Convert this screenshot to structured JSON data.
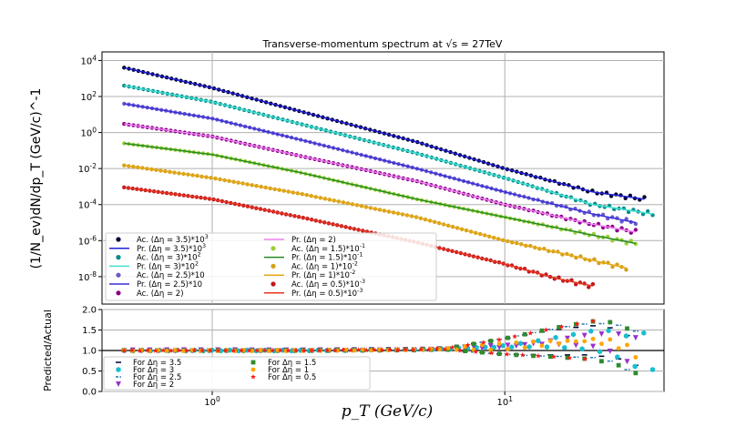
{
  "chart_data": [
    {
      "type": "scatter",
      "title": "Transverse-momentum spectrum at √s = 27TeV",
      "xlabel": "p_T (GeV/c)",
      "ylabel": "(1/N_ev)dN/dp_T (GeV/c)^-1",
      "xscale": "log",
      "yscale": "log",
      "xlim": [
        0.42,
        35
      ],
      "ylim": [
        3e-10,
        30000.0
      ],
      "grid": true,
      "legend_position": "lower-left",
      "y_tick_labels": [
        "10^4",
        "10^2",
        "10^0",
        "10^-2",
        "10^-4",
        "10^-6",
        "10^-8"
      ],
      "series": [
        {
          "name": "Ac. (Δη = 3.5)*10^3",
          "kind": "points",
          "color": "#000033",
          "x": [
            0.5,
            1,
            2,
            5,
            10,
            20,
            30
          ],
          "y": [
            4000,
            300,
            15,
            0.3,
            0.01,
            0.0005,
            0.0002
          ]
        },
        {
          "name": "Pr. (Δη = 3.5)*10^3",
          "kind": "line",
          "color": "#1f1fd6",
          "x": [
            0.5,
            1,
            2,
            5,
            10,
            20,
            30
          ],
          "y": [
            4000,
            300,
            15,
            0.3,
            0.01,
            0.0005,
            0.0002
          ]
        },
        {
          "name": "Ac. (Δη = 3)*10^2",
          "kind": "points",
          "color": "#008b8b",
          "x": [
            0.5,
            1,
            2,
            5,
            10,
            20,
            32
          ],
          "y": [
            400,
            50,
            3,
            0.07,
            0.003,
            0.0001,
            3e-05
          ]
        },
        {
          "name": "Pr. (Δη = 3)*10^2",
          "kind": "line",
          "color": "#40e0d0",
          "x": [
            0.5,
            1,
            2,
            5,
            10,
            20,
            32
          ],
          "y": [
            400,
            50,
            3,
            0.07,
            0.003,
            0.0001,
            3e-05
          ]
        },
        {
          "name": "Ac. (Δη = 2.5)*10",
          "kind": "points",
          "color": "#6a5acd",
          "x": [
            0.5,
            1,
            2,
            5,
            10,
            20,
            28
          ],
          "y": [
            40,
            6,
            0.4,
            0.01,
            0.0005,
            3e-05,
            1e-05
          ]
        },
        {
          "name": "Pr. (Δη = 2.5)*10",
          "kind": "line",
          "color": "#3a2fd8",
          "x": [
            0.5,
            1,
            2,
            5,
            10,
            20,
            28
          ],
          "y": [
            40,
            6,
            0.4,
            0.01,
            0.0005,
            3e-05,
            1e-05
          ]
        },
        {
          "name": "Ac. (Δη = 2)",
          "kind": "points",
          "color": "#8b008b",
          "x": [
            0.5,
            1,
            2,
            5,
            10,
            20,
            28
          ],
          "y": [
            3,
            0.6,
            0.05,
            0.002,
            0.0001,
            8e-06,
            3e-06
          ]
        },
        {
          "name": "Pr. (Δη = 2)",
          "kind": "line",
          "color": "#ee82ee",
          "x": [
            0.5,
            1,
            2,
            5,
            10,
            20,
            28
          ],
          "y": [
            3,
            0.6,
            0.05,
            0.002,
            0.0001,
            8e-06,
            3e-06
          ]
        },
        {
          "name": "Ac. (Δη = 1.5)*10^-1",
          "kind": "points",
          "color": "#9acd32",
          "x": [
            0.5,
            1,
            2,
            5,
            10,
            20,
            28
          ],
          "y": [
            0.25,
            0.06,
            0.006,
            0.0002,
            2e-05,
            2e-06,
            7e-07
          ]
        },
        {
          "name": "Pr. (Δη = 1.5)*10^-1",
          "kind": "line",
          "color": "#228b22",
          "x": [
            0.5,
            1,
            2,
            5,
            10,
            20,
            28
          ],
          "y": [
            0.25,
            0.06,
            0.006,
            0.0002,
            2e-05,
            2e-06,
            7e-07
          ]
        },
        {
          "name": "Ac. (Δη = 1)*10^-2",
          "kind": "points",
          "color": "#d4a017",
          "x": [
            0.5,
            1,
            2,
            5,
            10,
            20,
            26
          ],
          "y": [
            0.015,
            0.003,
            0.0004,
            2e-05,
            1e-06,
            8e-08,
            3e-08
          ]
        },
        {
          "name": "Pr. (Δη = 1)*10^-2",
          "kind": "line",
          "color": "#e6a817",
          "x": [
            0.5,
            1,
            2,
            5,
            10,
            20,
            26
          ],
          "y": [
            0.015,
            0.003,
            0.0004,
            2e-05,
            1e-06,
            8e-08,
            3e-08
          ]
        },
        {
          "name": "Ac. (Δη = 0.5)*10^-3",
          "kind": "points",
          "color": "#c0181e",
          "x": [
            0.5,
            1,
            2,
            5,
            10,
            15,
            20
          ],
          "y": [
            0.0009,
            0.0002,
            2e-05,
            8e-07,
            5e-08,
            8e-09,
            3e-09
          ]
        },
        {
          "name": "Pr. (Δη = 0.5)*10^-3",
          "kind": "line",
          "color": "#e8351e",
          "x": [
            0.5,
            1,
            2,
            5,
            10,
            15,
            20
          ],
          "y": [
            0.0009,
            0.0002,
            2e-05,
            8e-07,
            5e-08,
            8e-09,
            3e-09
          ]
        }
      ]
    },
    {
      "type": "scatter",
      "xlabel": "p_T (GeV/c)",
      "ylabel": "Predicted/Actual",
      "xscale": "log",
      "xlim": [
        0.42,
        35
      ],
      "ylim": [
        0.0,
        2.0
      ],
      "y_ticks": [
        0.0,
        0.5,
        1.0,
        1.5,
        2.0
      ],
      "x_tick_labels": [
        "10^0",
        "10^1"
      ],
      "reference_line": 1.0,
      "grid": true,
      "legend_position": "lower-left",
      "series": [
        {
          "name": "For Δη = 3.5",
          "marker": "dash",
          "color": "#000033"
        },
        {
          "name": "For Δη = 3",
          "marker": "hexagon",
          "color": "#17becf"
        },
        {
          "name": "For Δη = 2.5",
          "marker": "dashdot",
          "color": "#1f77b4"
        },
        {
          "name": "For Δη = 2",
          "marker": "triangle-down",
          "color": "#9932cc"
        },
        {
          "name": "For Δη = 1.5",
          "marker": "square",
          "color": "#2e8b2e"
        },
        {
          "name": "For Δη = 1",
          "marker": "circle",
          "color": "#ffa500"
        },
        {
          "name": "For Δη = 0.5",
          "marker": "star",
          "color": "#ff1a1a"
        }
      ],
      "trend": {
        "x": [
          0.5,
          2,
          5,
          7,
          10,
          15,
          20,
          25
        ],
        "y": [
          1.0,
          1.0,
          1.02,
          1.05,
          1.1,
          1.2,
          1.25,
          1.15
        ]
      }
    }
  ]
}
